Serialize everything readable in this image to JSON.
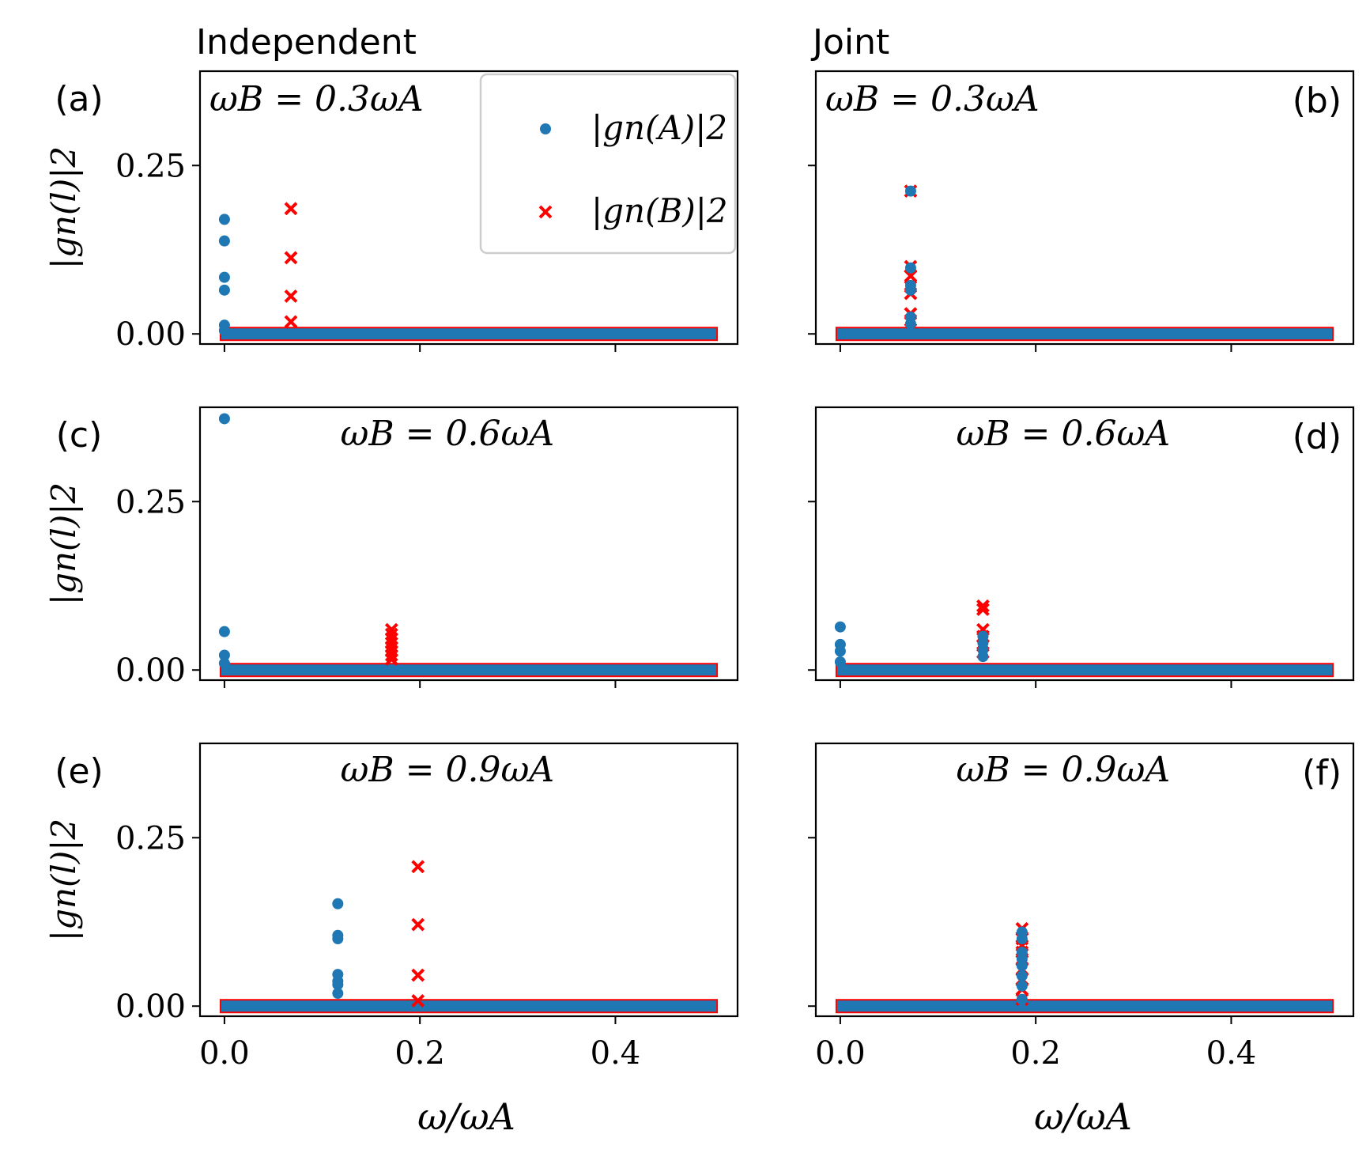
{
  "figure": {
    "column_titles": [
      "Independent",
      "Joint"
    ],
    "xlabel": "ω/ωA",
    "ylabel": "|gn(l)|2",
    "xticks": [
      "0.0",
      "0.2",
      "0.4"
    ],
    "yticks": [
      "0.00",
      "0.25"
    ],
    "legend": {
      "entries": [
        {
          "label": "|gn(A)|2",
          "marker": "dot",
          "color": "#1f77b4"
        },
        {
          "label": "|gn(B)|2",
          "marker": "x",
          "color": "#ff0000"
        }
      ]
    },
    "colors": {
      "A": "#1f77b4",
      "B": "#ff0000"
    }
  },
  "chart_data": [
    {
      "type": "scatter",
      "panel": "(a)",
      "annotation": "ωB = 0.3ωA",
      "xlim": [
        -0.025,
        0.525
      ],
      "ylim": [
        -0.015,
        0.39
      ],
      "baseline_range": [
        0.0,
        0.5
      ],
      "series": [
        {
          "name": "|gn(A)|2",
          "x": [
            0.0,
            0.0,
            0.0,
            0.0,
            0.0,
            0.0
          ],
          "y": [
            0.17,
            0.138,
            0.084,
            0.065,
            0.013,
            0.005
          ]
        },
        {
          "name": "|gn(B)|2",
          "x": [
            0.068,
            0.068,
            0.068,
            0.068
          ],
          "y": [
            0.186,
            0.113,
            0.056,
            0.018
          ]
        }
      ]
    },
    {
      "type": "scatter",
      "panel": "(b)",
      "annotation": "ωB = 0.3ωA",
      "xlim": [
        -0.025,
        0.525
      ],
      "ylim": [
        -0.015,
        0.39
      ],
      "baseline_range": [
        0.0,
        0.5
      ],
      "series": [
        {
          "name": "|gn(A)|2",
          "x": [
            0.072,
            0.072,
            0.072,
            0.072,
            0.072,
            0.072
          ],
          "y": [
            0.212,
            0.098,
            0.072,
            0.065,
            0.025,
            0.015
          ]
        },
        {
          "name": "|gn(B)|2",
          "x": [
            0.072,
            0.072,
            0.072,
            0.072,
            0.072,
            0.072,
            0.072
          ],
          "y": [
            0.212,
            0.1,
            0.086,
            0.07,
            0.06,
            0.03,
            0.02
          ]
        }
      ]
    },
    {
      "type": "scatter",
      "panel": "(c)",
      "annotation": "ωB = 0.6ωA",
      "xlim": [
        -0.025,
        0.525
      ],
      "ylim": [
        -0.015,
        0.39
      ],
      "baseline_range": [
        0.0,
        0.5
      ],
      "series": [
        {
          "name": "|gn(A)|2",
          "x": [
            0.0,
            0.0,
            0.0,
            0.0
          ],
          "y": [
            0.373,
            0.057,
            0.022,
            0.01
          ]
        },
        {
          "name": "|gn(B)|2",
          "x": [
            0.171,
            0.171,
            0.171,
            0.171,
            0.171,
            0.171,
            0.171,
            0.171
          ],
          "y": [
            0.06,
            0.053,
            0.046,
            0.04,
            0.034,
            0.028,
            0.022,
            0.016
          ]
        }
      ]
    },
    {
      "type": "scatter",
      "panel": "(d)",
      "annotation": "ωB = 0.6ωA",
      "xlim": [
        -0.025,
        0.525
      ],
      "ylim": [
        -0.015,
        0.39
      ],
      "baseline_range": [
        0.0,
        0.5
      ],
      "series": [
        {
          "name": "|gn(A)|2",
          "x": [
            0.0,
            0.0,
            0.0,
            0.0,
            0.146,
            0.146,
            0.146,
            0.146
          ],
          "y": [
            0.064,
            0.038,
            0.028,
            0.012,
            0.05,
            0.04,
            0.03,
            0.02
          ]
        },
        {
          "name": "|gn(B)|2",
          "x": [
            0.146,
            0.146,
            0.146,
            0.146,
            0.146,
            0.146
          ],
          "y": [
            0.095,
            0.09,
            0.06,
            0.05,
            0.036,
            0.026
          ]
        }
      ]
    },
    {
      "type": "scatter",
      "panel": "(e)",
      "annotation": "ωB = 0.9ωA",
      "xlim": [
        -0.025,
        0.525
      ],
      "ylim": [
        -0.015,
        0.39
      ],
      "baseline_range": [
        0.0,
        0.5
      ],
      "series": [
        {
          "name": "|gn(A)|2",
          "x": [
            0.116,
            0.116,
            0.116,
            0.116,
            0.116,
            0.116,
            0.116
          ],
          "y": [
            0.152,
            0.105,
            0.1,
            0.047,
            0.037,
            0.032,
            0.019
          ]
        },
        {
          "name": "|gn(B)|2",
          "x": [
            0.198,
            0.198,
            0.198,
            0.198
          ],
          "y": [
            0.207,
            0.121,
            0.046,
            0.008
          ]
        }
      ]
    },
    {
      "type": "scatter",
      "panel": "(f)",
      "annotation": "ωB = 0.9ωA",
      "xlim": [
        -0.025,
        0.525
      ],
      "ylim": [
        -0.015,
        0.39
      ],
      "baseline_range": [
        0.0,
        0.5
      ],
      "series": [
        {
          "name": "|gn(A)|2",
          "x": [
            0.186,
            0.186,
            0.186,
            0.186,
            0.186,
            0.186,
            0.186,
            0.186
          ],
          "y": [
            0.11,
            0.1,
            0.08,
            0.07,
            0.06,
            0.045,
            0.03,
            0.01
          ]
        },
        {
          "name": "|gn(B)|2",
          "x": [
            0.186,
            0.186,
            0.186,
            0.186,
            0.186,
            0.186,
            0.186,
            0.186,
            0.186
          ],
          "y": [
            0.115,
            0.1,
            0.09,
            0.08,
            0.07,
            0.055,
            0.04,
            0.025,
            0.01
          ]
        }
      ]
    }
  ]
}
